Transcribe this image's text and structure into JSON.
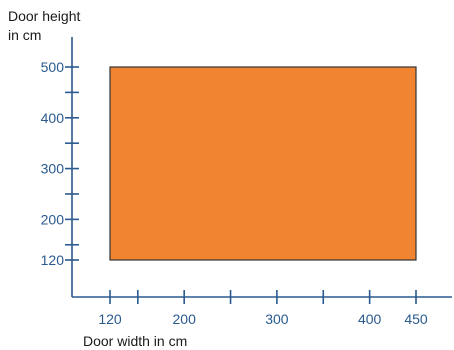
{
  "chart_data": {
    "type": "area",
    "title": "",
    "ylabel_lines": [
      "Door height",
      "in cm"
    ],
    "xlabel": "Door width in cm",
    "xlim": [
      100,
      460
    ],
    "ylim": [
      80,
      545
    ],
    "x_ticks": [
      120,
      150,
      200,
      250,
      300,
      350,
      400,
      450
    ],
    "x_tick_labels": [
      {
        "value": 120,
        "label": "120"
      },
      {
        "value": 200,
        "label": "200"
      },
      {
        "value": 300,
        "label": "300"
      },
      {
        "value": 400,
        "label": "400"
      },
      {
        "value": 450,
        "label": "450"
      }
    ],
    "y_ticks": [
      120,
      150,
      200,
      250,
      300,
      350,
      400,
      450,
      500
    ],
    "y_tick_labels": [
      {
        "value": 120,
        "label": "120"
      },
      {
        "value": 200,
        "label": "200"
      },
      {
        "value": 300,
        "label": "300"
      },
      {
        "value": 400,
        "label": "400"
      },
      {
        "value": 500,
        "label": "500"
      }
    ],
    "region": {
      "x_min": 120,
      "x_max": 450,
      "y_min": 120,
      "y_max": 500
    },
    "colors": {
      "axis": "#2a5a8e",
      "fill": "#f08431",
      "stroke": "#333333"
    },
    "grid": false,
    "legend": "none"
  }
}
